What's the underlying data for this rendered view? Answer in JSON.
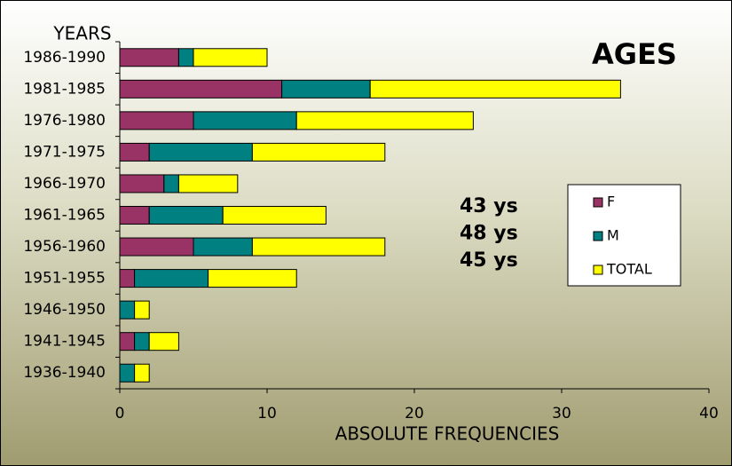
{
  "chart_data": {
    "type": "stacked-barh",
    "title": "AGES",
    "y_axis_label": "YEARS",
    "x_axis_label": "ABSOLUTE FREQUENCIES",
    "categories": [
      "1986-1990",
      "1981-1985",
      "1976-1980",
      "1971-1975",
      "1966-1970",
      "1961-1965",
      "1956-1960",
      "1951-1955",
      "1946-1950",
      "1941-1945",
      "1936-1940"
    ],
    "series": [
      {
        "name": "F",
        "color": "#993366",
        "values": [
          4,
          11,
          5,
          2,
          3,
          2,
          5,
          1,
          0,
          1,
          0
        ]
      },
      {
        "name": "M",
        "color": "#008080",
        "values": [
          1,
          6,
          7,
          7,
          1,
          5,
          4,
          5,
          1,
          1,
          1
        ]
      },
      {
        "name": "TOTAL",
        "color": "#ffff00",
        "values": [
          5,
          17,
          12,
          9,
          4,
          7,
          9,
          6,
          1,
          2,
          1
        ]
      }
    ],
    "xlim": [
      0,
      40
    ],
    "xticks": [
      0,
      10,
      20,
      30,
      40
    ],
    "grid": false,
    "annotations": [
      "43 ys",
      "48 ys",
      "45 ys"
    ]
  }
}
